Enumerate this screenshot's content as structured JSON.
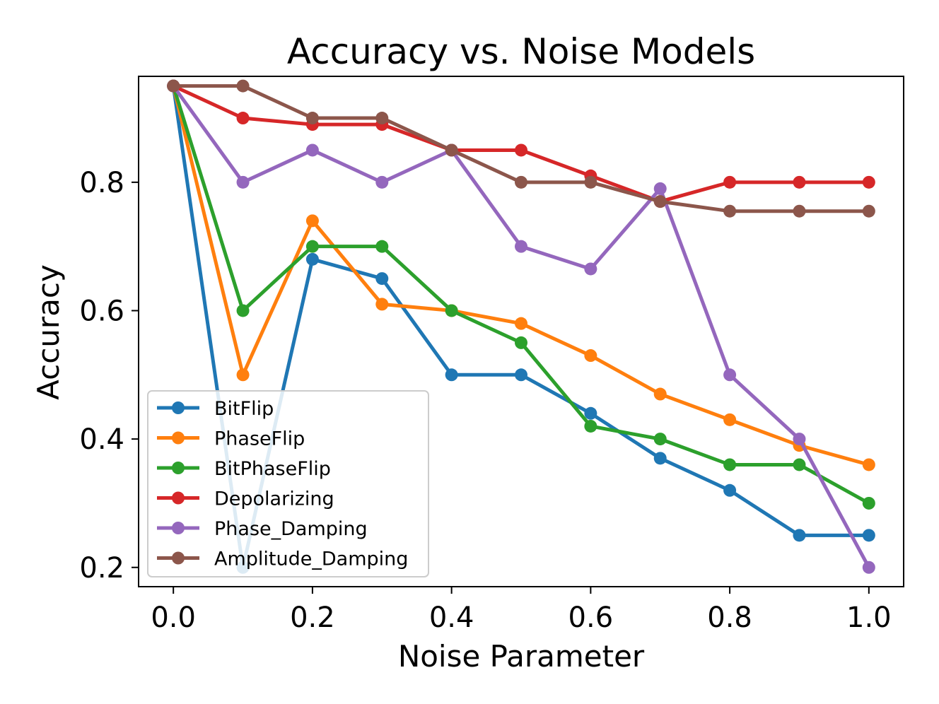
{
  "chart_data": {
    "type": "line",
    "title": "Accuracy vs. Noise Models",
    "xlabel": "Noise Parameter",
    "ylabel": "Accuracy",
    "xlim": [
      -0.05,
      1.05
    ],
    "ylim": [
      0.17,
      0.965
    ],
    "xticks": [
      0.0,
      0.2,
      0.4,
      0.6,
      0.8,
      1.0
    ],
    "xtick_labels": [
      "0.0",
      "0.2",
      "0.4",
      "0.6",
      "0.8",
      "1.0"
    ],
    "yticks": [
      0.2,
      0.4,
      0.6,
      0.8
    ],
    "ytick_labels": [
      "0.2",
      "0.4",
      "0.6",
      "0.8"
    ],
    "grid": false,
    "legend_position": "lower-left",
    "x": [
      0.0,
      0.1,
      0.2,
      0.3,
      0.4,
      0.5,
      0.6,
      0.7,
      0.8,
      0.9,
      1.0
    ],
    "series": [
      {
        "name": "BitFlip",
        "color": "#1f77b4",
        "values": [
          0.95,
          0.2,
          0.68,
          0.65,
          0.5,
          0.5,
          0.44,
          0.37,
          0.32,
          0.25,
          0.25
        ]
      },
      {
        "name": "PhaseFlip",
        "color": "#ff7f0e",
        "values": [
          0.95,
          0.5,
          0.74,
          0.61,
          0.6,
          0.58,
          0.53,
          0.47,
          0.43,
          0.39,
          0.36
        ]
      },
      {
        "name": "BitPhaseFlip",
        "color": "#2ca02c",
        "values": [
          0.95,
          0.6,
          0.7,
          0.7,
          0.6,
          0.55,
          0.42,
          0.4,
          0.36,
          0.36,
          0.3
        ]
      },
      {
        "name": "Depolarizing",
        "color": "#d62728",
        "values": [
          0.95,
          0.9,
          0.89,
          0.89,
          0.85,
          0.85,
          0.81,
          0.77,
          0.8,
          0.8,
          0.8
        ]
      },
      {
        "name": "Phase_Damping",
        "color": "#9467bd",
        "values": [
          0.95,
          0.8,
          0.85,
          0.8,
          0.85,
          0.7,
          0.665,
          0.79,
          0.5,
          0.4,
          0.2
        ]
      },
      {
        "name": "Amplitude_Damping",
        "color": "#8c564b",
        "values": [
          0.95,
          0.95,
          0.9,
          0.9,
          0.85,
          0.8,
          0.8,
          0.77,
          0.755,
          0.755,
          0.755
        ]
      }
    ]
  }
}
